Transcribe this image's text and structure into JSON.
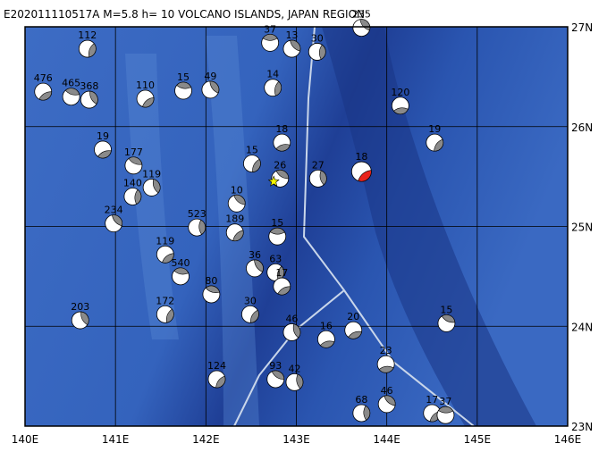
{
  "map": {
    "title": "E202011110517A  M=5.8 h= 10 VOLCANO ISLANDS, JAPAN REGION",
    "xlim": [
      140,
      146
    ],
    "ylim": [
      23,
      27
    ],
    "xticks": [
      {
        "value": 140,
        "label": "140E"
      },
      {
        "value": 141,
        "label": "141E"
      },
      {
        "value": 142,
        "label": "142E"
      },
      {
        "value": 143,
        "label": "143E"
      },
      {
        "value": 144,
        "label": "144E"
      },
      {
        "value": 145,
        "label": "145E"
      },
      {
        "value": 146,
        "label": "146E"
      }
    ],
    "yticks": [
      {
        "value": 23,
        "label": "23N"
      },
      {
        "value": 24,
        "label": "24N"
      },
      {
        "value": 25,
        "label": "25N"
      },
      {
        "value": 26,
        "label": "26N"
      },
      {
        "value": 27,
        "label": "27N"
      }
    ],
    "grid": true,
    "main_event": {
      "lon": 143.72,
      "lat": 25.55,
      "label": "18",
      "color": "#e8241c"
    },
    "epicenter": {
      "lon": 142.75,
      "lat": 25.45,
      "color": "#f5f500"
    },
    "events": [
      {
        "lon": 142.71,
        "lat": 26.84,
        "label": "37"
      },
      {
        "lon": 142.95,
        "lat": 26.78,
        "label": "13"
      },
      {
        "lon": 143.23,
        "lat": 26.75,
        "label": "30"
      },
      {
        "lon": 141.33,
        "lat": 26.28,
        "label": "110"
      },
      {
        "lon": 141.75,
        "lat": 26.36,
        "label": "15"
      },
      {
        "lon": 142.05,
        "lat": 26.37,
        "label": "49"
      },
      {
        "lon": 142.74,
        "lat": 26.39,
        "label": "14"
      },
      {
        "lon": 140.2,
        "lat": 26.35,
        "label": "476"
      },
      {
        "lon": 140.51,
        "lat": 26.3,
        "label": "465"
      },
      {
        "lon": 140.71,
        "lat": 26.27,
        "label": "368"
      },
      {
        "lon": 140.69,
        "lat": 26.78,
        "label": "112"
      },
      {
        "lon": 140.86,
        "lat": 25.77,
        "label": "19"
      },
      {
        "lon": 141.2,
        "lat": 25.61,
        "label": "177"
      },
      {
        "lon": 141.4,
        "lat": 25.39,
        "label": "119"
      },
      {
        "lon": 142.51,
        "lat": 25.63,
        "label": "15"
      },
      {
        "lon": 142.84,
        "lat": 25.84,
        "label": "18"
      },
      {
        "lon": 142.82,
        "lat": 25.48,
        "label": "26"
      },
      {
        "lon": 143.24,
        "lat": 25.48,
        "label": "27"
      },
      {
        "lon": 144.53,
        "lat": 25.84,
        "label": "19"
      },
      {
        "lon": 144.15,
        "lat": 26.21,
        "label": "120"
      },
      {
        "lon": 142.34,
        "lat": 25.23,
        "label": "10"
      },
      {
        "lon": 141.9,
        "lat": 24.99,
        "label": "523"
      },
      {
        "lon": 142.32,
        "lat": 24.94,
        "label": "189"
      },
      {
        "lon": 142.79,
        "lat": 24.9,
        "label": "15"
      },
      {
        "lon": 140.98,
        "lat": 25.03,
        "label": "234"
      },
      {
        "lon": 141.19,
        "lat": 25.3,
        "label": "140"
      },
      {
        "lon": 141.55,
        "lat": 24.72,
        "label": "119"
      },
      {
        "lon": 141.72,
        "lat": 24.5,
        "label": "540"
      },
      {
        "lon": 142.54,
        "lat": 24.58,
        "label": "36"
      },
      {
        "lon": 142.77,
        "lat": 24.54,
        "label": "63"
      },
      {
        "lon": 142.84,
        "lat": 24.4,
        "label": "17"
      },
      {
        "lon": 142.06,
        "lat": 24.32,
        "label": "80"
      },
      {
        "lon": 140.61,
        "lat": 24.06,
        "label": "203"
      },
      {
        "lon": 141.55,
        "lat": 24.12,
        "label": "172"
      },
      {
        "lon": 143.63,
        "lat": 23.96,
        "label": "20"
      },
      {
        "lon": 144.66,
        "lat": 24.03,
        "label": "15"
      },
      {
        "lon": 142.95,
        "lat": 23.94,
        "label": "46"
      },
      {
        "lon": 142.49,
        "lat": 24.12,
        "label": "30"
      },
      {
        "lon": 143.33,
        "lat": 23.87,
        "label": "16"
      },
      {
        "lon": 142.77,
        "lat": 23.47,
        "label": "93"
      },
      {
        "lon": 142.98,
        "lat": 23.44,
        "label": "42"
      },
      {
        "lon": 142.12,
        "lat": 23.47,
        "label": "124"
      },
      {
        "lon": 143.99,
        "lat": 23.62,
        "label": "23"
      },
      {
        "lon": 144.0,
        "lat": 23.22,
        "label": "46"
      },
      {
        "lon": 143.72,
        "lat": 23.13,
        "label": "68"
      },
      {
        "lon": 144.5,
        "lat": 23.13,
        "label": "17"
      },
      {
        "lon": 144.65,
        "lat": 23.11,
        "label": "37"
      },
      {
        "lon": 143.72,
        "lat": 26.99,
        "label": "235"
      }
    ]
  }
}
